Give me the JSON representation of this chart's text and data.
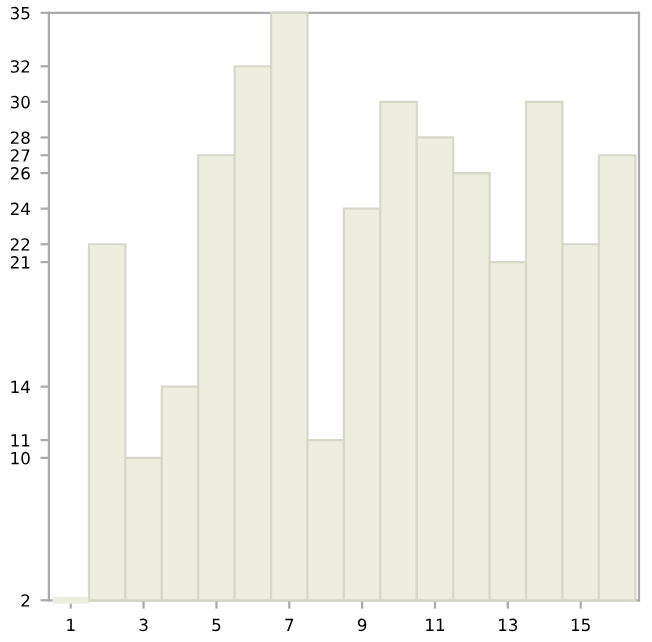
{
  "chart_data": {
    "type": "bar",
    "categories": [
      "1",
      null,
      "3",
      null,
      "5",
      null,
      "7",
      null,
      "9",
      null,
      "11",
      null,
      "13",
      null,
      "15",
      null
    ],
    "values": [
      2,
      22,
      10,
      14,
      27,
      32,
      35,
      11,
      24,
      30,
      28,
      26,
      21,
      30,
      22,
      27
    ],
    "color": "#eeeee0",
    "ylim": [
      2,
      35
    ],
    "yticks": [
      2,
      10,
      11,
      14,
      21,
      22,
      24,
      26,
      27,
      28,
      30,
      32,
      35
    ],
    "grid": false,
    "legend": false
  }
}
